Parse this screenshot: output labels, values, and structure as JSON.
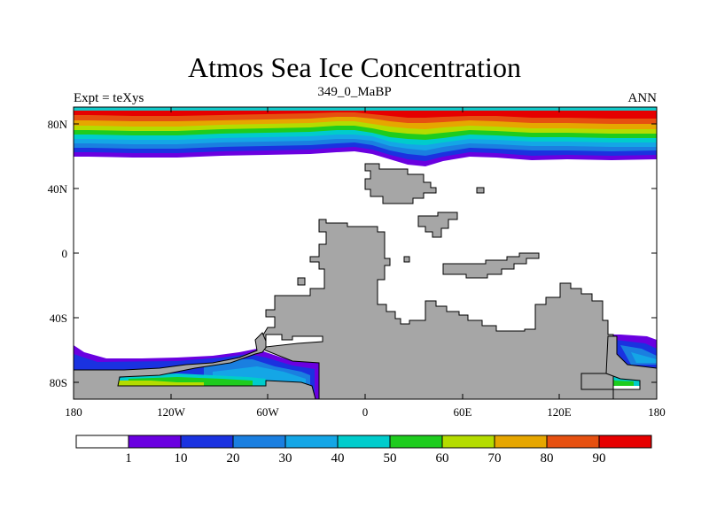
{
  "title": "Atmos Sea Ice Concentration",
  "left_label": "Expt = teXys",
  "center_label": "349_0_MaBP",
  "right_label": "ANN",
  "map": {
    "field": "sea ice concentration",
    "lon_ticks": [
      "180",
      "120W",
      "60W",
      "0",
      "60E",
      "120E",
      "180"
    ],
    "lat_ticks": [
      "80N",
      "40N",
      "0",
      "40S",
      "80S"
    ],
    "land_color": "#a6a6a6"
  },
  "colorbar": {
    "colors": [
      "#ffffff",
      "#6a00e0",
      "#1a32e0",
      "#1a7fe0",
      "#14a6e6",
      "#00cccc",
      "#1ecc1e",
      "#b4dc00",
      "#e6a600",
      "#e65010",
      "#e60000"
    ],
    "labels": [
      "1",
      "10",
      "20",
      "30",
      "40",
      "50",
      "60",
      "70",
      "80",
      "90"
    ]
  }
}
